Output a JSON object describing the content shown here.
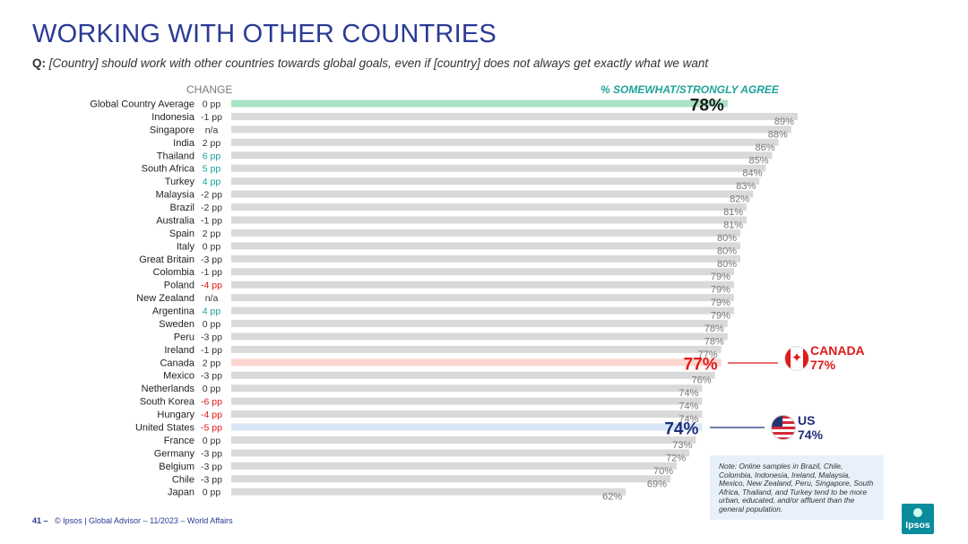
{
  "title": "WORKING WITH OTHER COUNTRIES",
  "question": {
    "prefix": "Q:",
    "text": "[Country] should work with other countries towards global goals, even if [country] does not always get exactly what we want"
  },
  "headers": {
    "change": "CHANGE",
    "agree": "% SOMEWHAT/STRONGLY AGREE"
  },
  "chart_data": {
    "type": "bar",
    "orientation": "horizontal",
    "categories": [
      "Global Country Average",
      "Indonesia",
      "Singapore",
      "India",
      "Thailand",
      "South Africa",
      "Turkey",
      "Malaysia",
      "Brazil",
      "Australia",
      "Spain",
      "Italy",
      "Great Britain",
      "Colombia",
      "Poland",
      "New Zealand",
      "Argentina",
      "Sweden",
      "Peru",
      "Ireland",
      "Canada",
      "Mexico",
      "Netherlands",
      "South Korea",
      "Hungary",
      "United States",
      "France",
      "Germany",
      "Belgium",
      "Chile",
      "Japan"
    ],
    "values": [
      78,
      89,
      88,
      86,
      85,
      84,
      83,
      82,
      81,
      81,
      80,
      80,
      80,
      79,
      79,
      79,
      79,
      78,
      78,
      77,
      77,
      76,
      74,
      74,
      74,
      74,
      73,
      72,
      70,
      69,
      62
    ],
    "value_labels": [
      "78%",
      "89%",
      "88%",
      "86%",
      "85%",
      "84%",
      "83%",
      "82%",
      "81%",
      "81%",
      "80%",
      "80%",
      "80%",
      "79%",
      "79%",
      "79%",
      "79%",
      "78%",
      "78%",
      "77%",
      "77%",
      "76%",
      "74%",
      "74%",
      "74%",
      "74%",
      "73%",
      "72%",
      "70%",
      "69%",
      "62%"
    ],
    "change": [
      "0 pp",
      "-1 pp",
      "n/a",
      "2 pp",
      "6 pp",
      "5 pp",
      "4 pp",
      "-2 pp",
      "-2 pp",
      "-1 pp",
      "2 pp",
      "0 pp",
      "-3 pp",
      "-1 pp",
      "-4 pp",
      "n/a",
      "4 pp",
      "0 pp",
      "-3 pp",
      "-1 pp",
      "2 pp",
      "-3 pp",
      "0 pp",
      "-6 pp",
      "-4 pp",
      "-5 pp",
      "0 pp",
      "-3 pp",
      "-3 pp",
      "-3 pp",
      "0 pp"
    ],
    "change_status": [
      "neutral",
      "neutral",
      "neutral",
      "neutral",
      "up",
      "up",
      "up",
      "neutral",
      "neutral",
      "neutral",
      "neutral",
      "neutral",
      "neutral",
      "neutral",
      "down",
      "neutral",
      "up",
      "neutral",
      "neutral",
      "neutral",
      "neutral",
      "neutral",
      "neutral",
      "down",
      "down",
      "down",
      "neutral",
      "neutral",
      "neutral",
      "neutral",
      "neutral"
    ],
    "highlights": {
      "Global Country Average": "#a9e3c6",
      "Canada": "#fbd7d0",
      "United States": "#d8e6f7"
    },
    "colors": {
      "bar": "#d9d9d9",
      "up": "#14a39b",
      "down": "#e01a1a",
      "neutral": "#333333",
      "canada": "#e01a1a",
      "us": "#1f2d7a",
      "average": "#1b1b1b"
    },
    "xlim": [
      0,
      100
    ]
  },
  "callouts": {
    "canada": {
      "name": "CANADA",
      "value": "77%"
    },
    "us": {
      "name": "US",
      "value": "74%"
    }
  },
  "icons": {
    "canada": "canada-flag-icon",
    "us": "us-flag-icon"
  },
  "note": "Note: Online samples in Brazil, Chile, Colombia, Indonesia, Ireland, Malaysia, Mexico, New Zealand, Peru, Singapore, South Africa, Thailand, and Turkey tend to be more urban, educated, and/or affluent than the general population.",
  "footer": {
    "page": "41 –",
    "text": "© Ipsos | Global Advisor – 11/2023 – World Affairs"
  },
  "logo": "Ipsos"
}
